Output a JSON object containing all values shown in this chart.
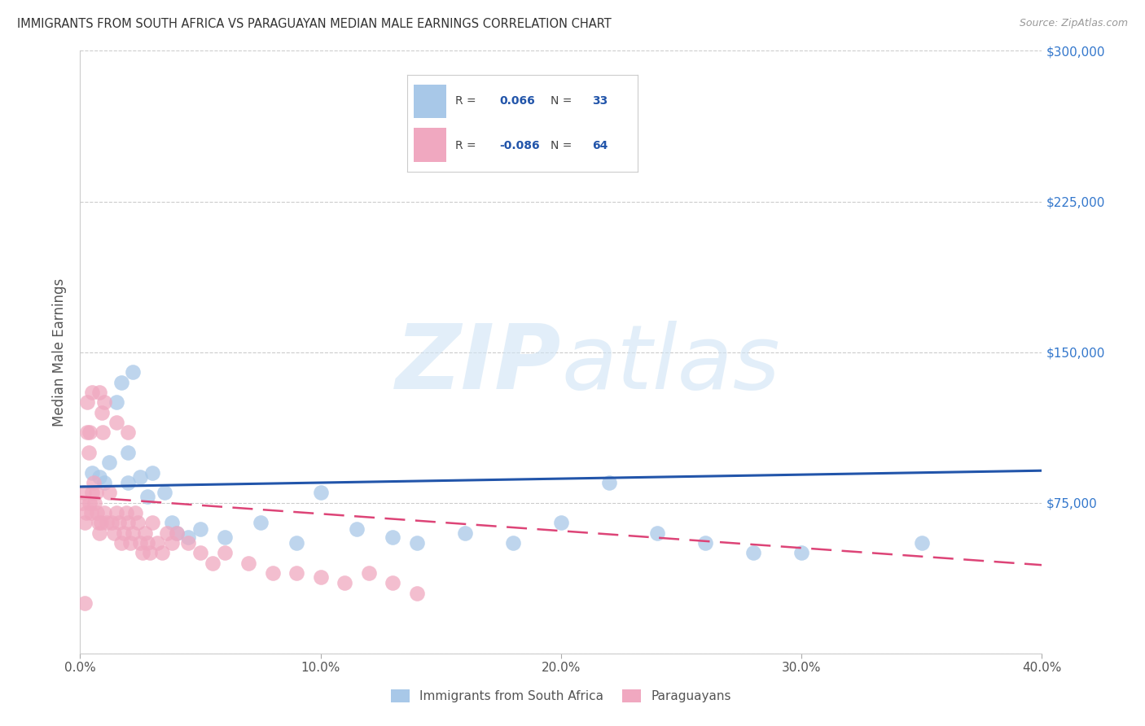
{
  "title": "IMMIGRANTS FROM SOUTH AFRICA VS PARAGUAYAN MEDIAN MALE EARNINGS CORRELATION CHART",
  "source": "Source: ZipAtlas.com",
  "ylabel": "Median Male Earnings",
  "y_ticks": [
    0,
    75000,
    150000,
    225000,
    300000
  ],
  "y_tick_labels": [
    "",
    "$75,000",
    "$150,000",
    "$225,000",
    "$300,000"
  ],
  "x_min": 0.0,
  "x_max": 40.0,
  "y_min": 0,
  "y_max": 300000,
  "blue_R": 0.066,
  "blue_N": 33,
  "pink_R": -0.086,
  "pink_N": 64,
  "blue_dot_color": "#a8c8e8",
  "pink_dot_color": "#f0a8c0",
  "blue_line_color": "#2255aa",
  "pink_line_color": "#dd4477",
  "blue_scatter_x": [
    0.5,
    0.8,
    1.0,
    1.2,
    1.5,
    1.7,
    2.0,
    2.0,
    2.2,
    2.5,
    2.8,
    3.0,
    3.5,
    3.8,
    4.0,
    4.5,
    5.0,
    6.0,
    7.5,
    9.0,
    10.0,
    11.5,
    13.0,
    14.0,
    16.0,
    18.0,
    20.0,
    22.0,
    24.0,
    26.0,
    28.0,
    30.0,
    35.0
  ],
  "blue_scatter_y": [
    90000,
    88000,
    85000,
    95000,
    125000,
    135000,
    85000,
    100000,
    140000,
    88000,
    78000,
    90000,
    80000,
    65000,
    60000,
    58000,
    62000,
    58000,
    65000,
    55000,
    80000,
    62000,
    58000,
    55000,
    60000,
    55000,
    65000,
    85000,
    60000,
    55000,
    50000,
    50000,
    55000
  ],
  "pink_scatter_x": [
    0.1,
    0.15,
    0.2,
    0.25,
    0.3,
    0.35,
    0.4,
    0.45,
    0.5,
    0.55,
    0.6,
    0.65,
    0.7,
    0.75,
    0.8,
    0.85,
    0.9,
    0.95,
    1.0,
    1.1,
    1.2,
    1.3,
    1.4,
    1.5,
    1.6,
    1.7,
    1.8,
    1.9,
    2.0,
    2.1,
    2.2,
    2.3,
    2.4,
    2.5,
    2.6,
    2.7,
    2.8,
    2.9,
    3.0,
    3.2,
    3.4,
    3.6,
    3.8,
    4.0,
    4.5,
    5.0,
    5.5,
    6.0,
    7.0,
    8.0,
    9.0,
    10.0,
    11.0,
    12.0,
    13.0,
    14.0,
    0.3,
    0.5,
    0.8,
    1.0,
    1.5,
    2.0,
    0.2,
    0.4
  ],
  "pink_scatter_y": [
    75000,
    80000,
    65000,
    70000,
    110000,
    100000,
    75000,
    70000,
    80000,
    85000,
    75000,
    80000,
    70000,
    65000,
    60000,
    65000,
    120000,
    110000,
    70000,
    65000,
    80000,
    65000,
    60000,
    70000,
    65000,
    55000,
    60000,
    70000,
    65000,
    55000,
    60000,
    70000,
    65000,
    55000,
    50000,
    60000,
    55000,
    50000,
    65000,
    55000,
    50000,
    60000,
    55000,
    60000,
    55000,
    50000,
    45000,
    50000,
    45000,
    40000,
    40000,
    38000,
    35000,
    40000,
    35000,
    30000,
    125000,
    130000,
    130000,
    125000,
    115000,
    110000,
    25000,
    110000
  ],
  "blue_trend_x": [
    0.0,
    40.0
  ],
  "blue_trend_y": [
    83000,
    91000
  ],
  "pink_trend_x": [
    0.0,
    40.0
  ],
  "pink_trend_y": [
    78000,
    44000
  ]
}
